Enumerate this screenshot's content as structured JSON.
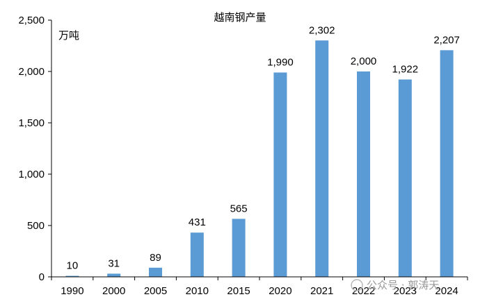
{
  "chart_data": {
    "type": "bar",
    "title": "越南钢产量",
    "unit": "万吨",
    "categories": [
      "1990",
      "2000",
      "2005",
      "2010",
      "2015",
      "2020",
      "2021",
      "2022",
      "2023",
      "2024"
    ],
    "values": [
      10,
      31,
      89,
      431,
      565,
      1990,
      2302,
      2000,
      1922,
      2207
    ],
    "value_labels": [
      "10",
      "31",
      "89",
      "431",
      "565",
      "1,990",
      "2,302",
      "2,000",
      "1,922",
      "2,207"
    ],
    "y_ticks": [
      "0",
      "500",
      "1,000",
      "1,500",
      "2,000",
      "2,500"
    ],
    "y_tick_values": [
      0,
      500,
      1000,
      1500,
      2000,
      2500
    ],
    "ylim": [
      0,
      2500
    ],
    "grid": false,
    "colors": {
      "bar": "#5b9bd5",
      "axis": "#000000"
    }
  },
  "watermark": {
    "text": "公众号 · 郭涛天"
  }
}
